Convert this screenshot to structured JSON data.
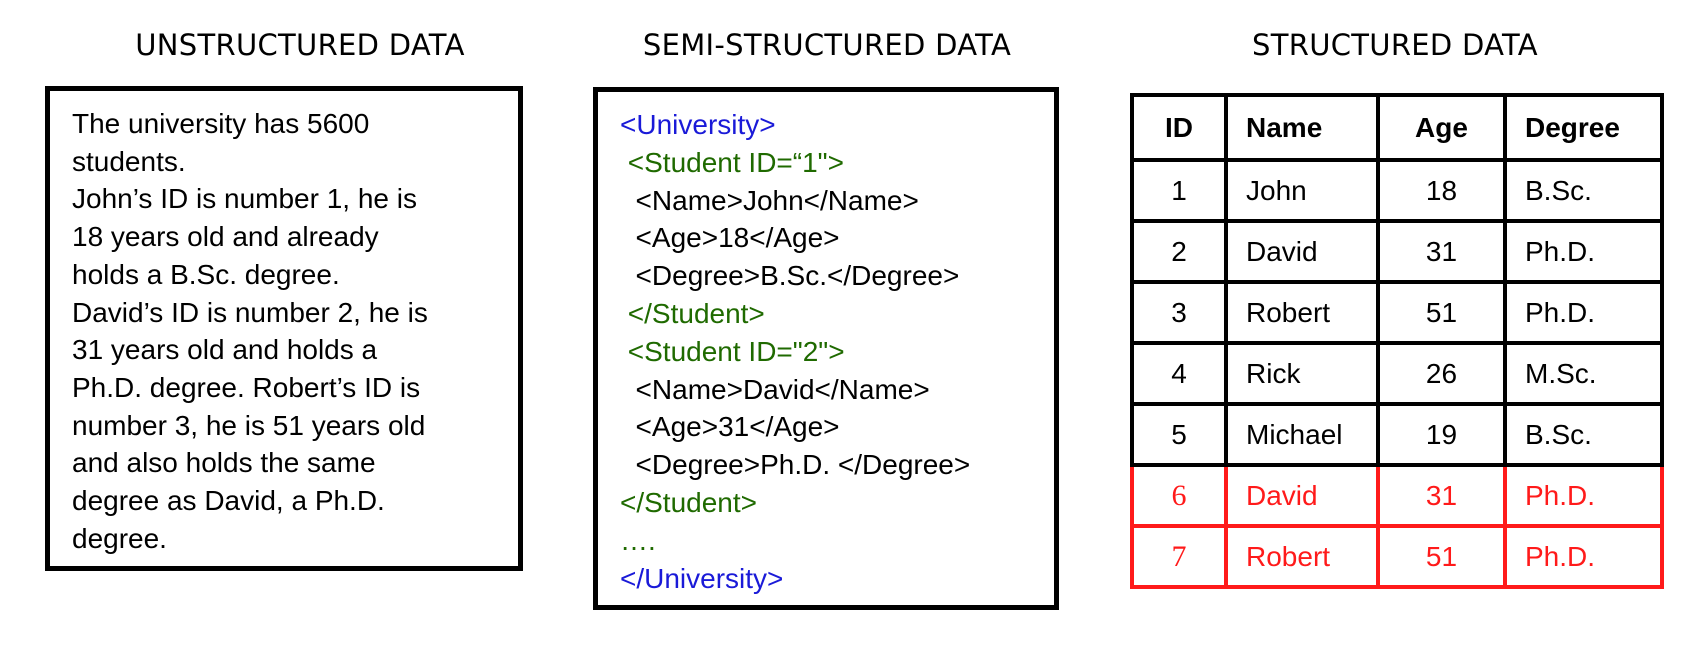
{
  "headings": {
    "unstructured": "UNSTRUCTURED DATA",
    "semi_structured": "SEMI-STRUCTURED DATA",
    "structured": "STRUCTURED DATA"
  },
  "unstructured_lines": [
    "The university has 5600",
    "students.",
    "John’s ID is number 1, he is",
    "18 years old and already",
    "holds a B.Sc. degree.",
    "David’s ID is number 2, he is",
    "31 years old and holds a",
    "Ph.D. degree. Robert’s ID is",
    "number 3, he is 51 years old",
    "and also holds the same",
    "degree as David, a Ph.D.",
    "degree."
  ],
  "xml_lines": [
    {
      "text": "<University>",
      "color": "#1a1ad8"
    },
    {
      "text": " <Student ID=“1\">",
      "color": "#1f6a00"
    },
    {
      "text": "  <Name>John</Name>",
      "color": "#000000"
    },
    {
      "text": "  <Age>18</Age>",
      "color": "#000000"
    },
    {
      "text": "  <Degree>B.Sc.</Degree>",
      "color": "#000000"
    },
    {
      "text": " </Student>",
      "color": "#1f6a00"
    },
    {
      "text": " <Student ID=\"2\">",
      "color": "#1f6a00"
    },
    {
      "text": "  <Name>David</Name>",
      "color": "#000000"
    },
    {
      "text": "  <Age>31</Age>",
      "color": "#000000"
    },
    {
      "text": "  <Degree>Ph.D. </Degree>",
      "color": "#000000"
    },
    {
      "text": "</Student>",
      "color": "#1f6a00"
    },
    {
      "text": "….",
      "color": "#1f6a00"
    },
    {
      "text": "</University>",
      "color": "#1a1ad8"
    }
  ],
  "table": {
    "headers": [
      "ID",
      "Name",
      "Age",
      "Degree"
    ],
    "rows": [
      [
        "1",
        "John",
        "18",
        "B.Sc."
      ],
      [
        "2",
        "David",
        "31",
        "Ph.D."
      ],
      [
        "3",
        "Robert",
        "51",
        "Ph.D."
      ],
      [
        "4",
        "Rick",
        "26",
        "M.Sc."
      ],
      [
        "5",
        "Michael",
        "19",
        "B.Sc."
      ],
      [
        "6",
        "David",
        "31",
        "Ph.D."
      ],
      [
        "7",
        "Robert",
        "51",
        "Ph.D."
      ]
    ],
    "highlight_color": "#ff1a1a",
    "highlighted_row_ids": [
      "6",
      "7"
    ]
  }
}
